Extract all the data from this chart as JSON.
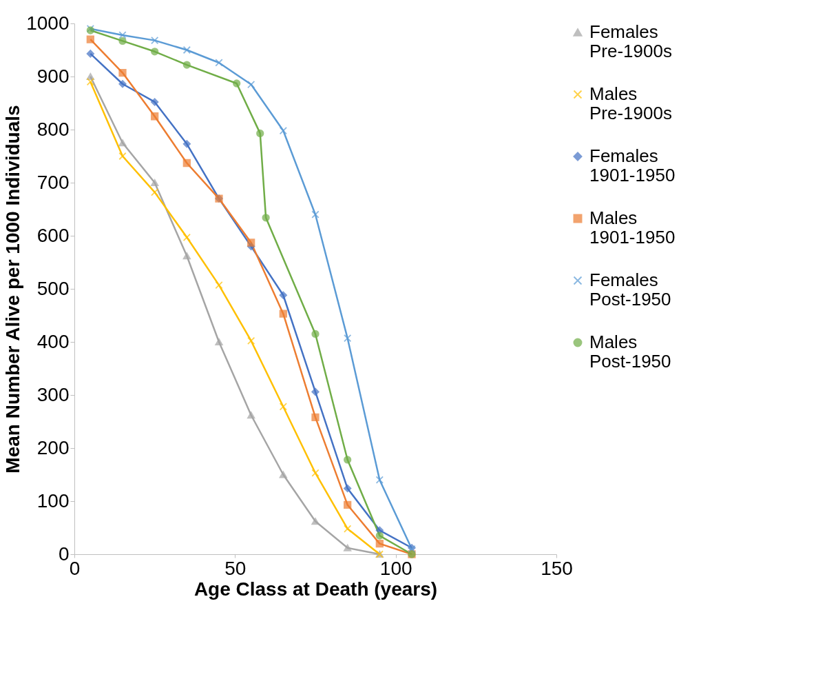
{
  "chart_data": {
    "type": "line",
    "xlabel": "Age Class at Death (years)",
    "ylabel": "Mean Number Alive per 1000 Individuals",
    "xlim": [
      0,
      150
    ],
    "xticks": [
      0,
      50,
      100,
      150
    ],
    "ylim": [
      0,
      1000
    ],
    "yticks": [
      0,
      100,
      200,
      300,
      400,
      500,
      600,
      700,
      800,
      900,
      1000
    ],
    "grid": false,
    "legend": "top right",
    "series": [
      {
        "name": "Females Pre-1900s",
        "color": "#a5a5a5",
        "marker": "triangle",
        "x": [
          5,
          15,
          25,
          35,
          45,
          55,
          65,
          75,
          85,
          95
        ],
        "values": [
          900,
          775,
          700,
          562,
          400,
          262,
          150,
          62,
          12,
          0
        ]
      },
      {
        "name": "Males Pre-1900s",
        "color": "#ffc000",
        "marker": "cross",
        "x": [
          5,
          15,
          25,
          35,
          45,
          55,
          65,
          75,
          85,
          95
        ],
        "values": [
          890,
          750,
          682,
          597,
          507,
          402,
          278,
          153,
          48,
          0
        ]
      },
      {
        "name": "Females 1901-1950",
        "color": "#4472c4",
        "marker": "diamond",
        "x": [
          5,
          15,
          25,
          35,
          45,
          55,
          65,
          75,
          85,
          95,
          105
        ],
        "values": [
          943,
          886,
          852,
          773,
          670,
          580,
          488,
          306,
          124,
          45,
          12
        ]
      },
      {
        "name": "Males 1901-1950",
        "color": "#ed7d31",
        "marker": "square",
        "x": [
          5,
          15,
          25,
          35,
          45,
          55,
          65,
          75,
          85,
          95,
          105
        ],
        "values": [
          970,
          907,
          825,
          737,
          670,
          587,
          453,
          258,
          93,
          20,
          0
        ]
      },
      {
        "name": "Females Post-1950",
        "color": "#5b9bd5",
        "marker": "cross",
        "x": [
          5,
          15,
          25,
          35,
          45,
          55,
          65,
          75,
          85,
          95,
          105
        ],
        "values": [
          990,
          978,
          968,
          950,
          926,
          885,
          798,
          640,
          407,
          140,
          10
        ]
      },
      {
        "name": "Males Post-1950",
        "color": "#70ad47",
        "marker": "circle",
        "x": [
          5,
          15,
          25,
          35,
          50.5,
          57.8,
          59.6,
          75,
          85,
          95,
          105
        ],
        "values": [
          987,
          967,
          947,
          922,
          887,
          793,
          634,
          415,
          178,
          35,
          0
        ]
      }
    ]
  }
}
